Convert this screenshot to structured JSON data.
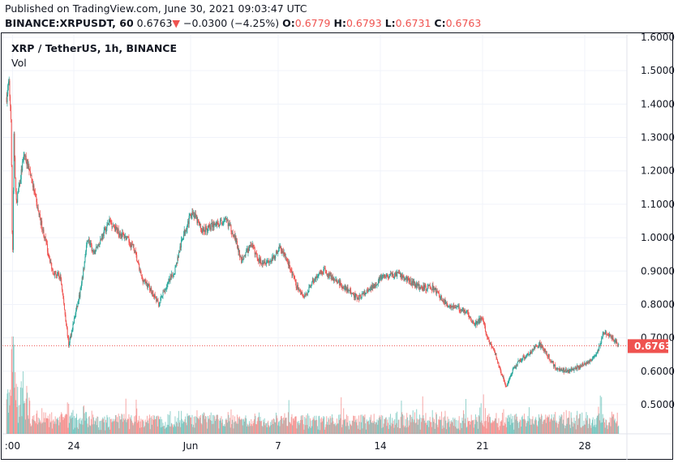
{
  "header": {
    "published": "Published on TradingView.com, June 30, 2021 09:03:47 UTC",
    "symbol": "BINANCE:XRPUSDT, 60",
    "last": "0.6763",
    "change": "−0.0300 (−4.25%)",
    "o_label": "O:",
    "o": "0.6779",
    "h_label": "H:",
    "h": "0.6793",
    "l_label": "L:",
    "l": "0.6731",
    "c_label": "C:",
    "c": "0.6763",
    "down_arrow": "▼"
  },
  "legend": {
    "title": "XRP / TetherUS, 1h, BINANCE",
    "vol": "Vol"
  },
  "colors": {
    "up": "#26a69a",
    "down": "#ef5350",
    "grid": "#f0f3fa"
  },
  "chart_data": {
    "type": "candlestick",
    "title": "XRP / TetherUS, 1h, BINANCE",
    "x_unit": "days since May 20 2021 00:00 UTC",
    "ylim": [
      0.43,
      1.615
    ],
    "y_ticks": [
      "1.6000",
      "1.5000",
      "1.4000",
      "1.3000",
      "1.2000",
      "1.1000",
      "1.0000",
      "0.9000",
      "0.8000",
      "0.7000",
      "0.6000",
      "0.5000"
    ],
    "x_ticks": [
      {
        "day": -0.2,
        "label": ":00"
      },
      {
        "day": 4,
        "label": "24"
      },
      {
        "day": 12,
        "label": "Jun"
      },
      {
        "day": 18,
        "label": "7"
      },
      {
        "day": 25,
        "label": "14"
      },
      {
        "day": 32,
        "label": "21"
      },
      {
        "day": 39,
        "label": "28"
      }
    ],
    "last_price": "0.6763",
    "close_path": [
      [
        -0.6,
        1.42
      ],
      [
        -0.45,
        1.47
      ],
      [
        -0.3,
        1.36
      ],
      [
        -0.2,
        0.9
      ],
      [
        -0.1,
        1.3
      ],
      [
        0.05,
        1.1
      ],
      [
        0.6,
        1.25
      ],
      [
        1.0,
        1.2
      ],
      [
        1.45,
        1.1
      ],
      [
        2.0,
        1.0
      ],
      [
        2.55,
        0.9
      ],
      [
        3.1,
        0.88
      ],
      [
        3.65,
        0.68
      ],
      [
        4.05,
        0.76
      ],
      [
        4.5,
        0.85
      ],
      [
        4.95,
        1.0
      ],
      [
        5.35,
        0.95
      ],
      [
        5.9,
        1.0
      ],
      [
        6.45,
        1.05
      ],
      [
        7.0,
        1.02
      ],
      [
        7.55,
        1.0
      ],
      [
        8.1,
        0.97
      ],
      [
        8.65,
        0.88
      ],
      [
        9.2,
        0.85
      ],
      [
        9.8,
        0.8
      ],
      [
        10.3,
        0.85
      ],
      [
        10.9,
        0.9
      ],
      [
        11.45,
        1.0
      ],
      [
        12.1,
        1.08
      ],
      [
        12.8,
        1.02
      ],
      [
        13.65,
        1.04
      ],
      [
        14.5,
        1.05
      ],
      [
        15.05,
        1.0
      ],
      [
        15.45,
        0.93
      ],
      [
        16.15,
        0.98
      ],
      [
        16.7,
        0.93
      ],
      [
        17.55,
        0.93
      ],
      [
        18.1,
        0.97
      ],
      [
        18.65,
        0.93
      ],
      [
        19.2,
        0.86
      ],
      [
        19.8,
        0.82
      ],
      [
        20.35,
        0.87
      ],
      [
        21.15,
        0.9
      ],
      [
        22.3,
        0.86
      ],
      [
        23.4,
        0.82
      ],
      [
        24.2,
        0.84
      ],
      [
        25.05,
        0.88
      ],
      [
        26.15,
        0.89
      ],
      [
        27.0,
        0.87
      ],
      [
        27.8,
        0.85
      ],
      [
        28.65,
        0.85
      ],
      [
        29.5,
        0.8
      ],
      [
        30.3,
        0.79
      ],
      [
        30.9,
        0.78
      ],
      [
        31.45,
        0.74
      ],
      [
        32.0,
        0.76
      ],
      [
        32.3,
        0.7
      ],
      [
        32.8,
        0.66
      ],
      [
        33.4,
        0.58
      ],
      [
        33.65,
        0.55
      ],
      [
        34.05,
        0.6
      ],
      [
        34.5,
        0.63
      ],
      [
        35.05,
        0.65
      ],
      [
        35.9,
        0.68
      ],
      [
        36.45,
        0.65
      ],
      [
        37.0,
        0.61
      ],
      [
        37.8,
        0.6
      ],
      [
        38.95,
        0.62
      ],
      [
        39.8,
        0.65
      ],
      [
        40.35,
        0.72
      ],
      [
        40.9,
        0.7
      ],
      [
        41.33,
        0.6763
      ]
    ]
  }
}
